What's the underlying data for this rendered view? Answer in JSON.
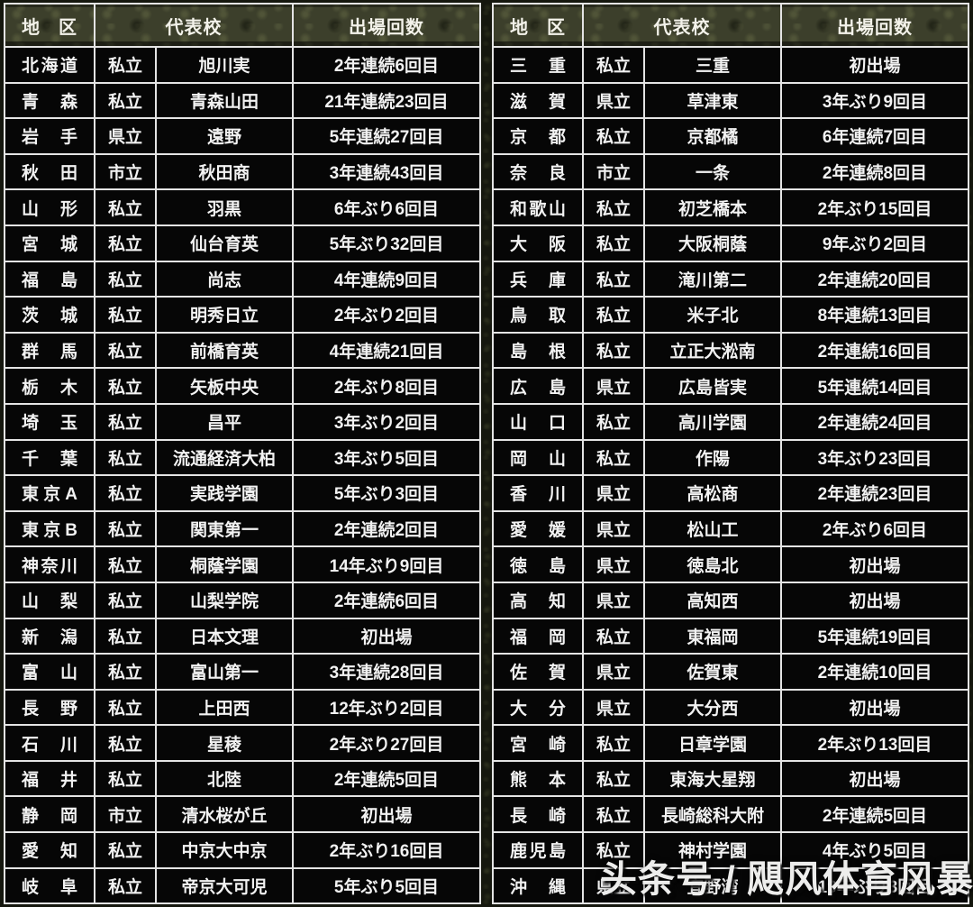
{
  "watermark": "头条号 / 飓风体育风暴",
  "colors": {
    "page_background": "#15170e",
    "header_background": "#3c3f2b",
    "cell_background": "#060606",
    "border": "#e4e4e4",
    "text": "#f2f2f2"
  },
  "chart_data": {
    "type": "table",
    "columns": [
      "地区",
      "代表校",
      "出場回数"
    ],
    "tables": [
      {
        "side": "left",
        "rows": [
          {
            "region": "北海道",
            "type": "私立",
            "school": "旭川実",
            "appearances": "2年連続6回目"
          },
          {
            "region": "青森",
            "type": "私立",
            "school": "青森山田",
            "appearances": "21年連続23回目"
          },
          {
            "region": "岩手",
            "type": "県立",
            "school": "遠野",
            "appearances": "5年連続27回目"
          },
          {
            "region": "秋田",
            "type": "市立",
            "school": "秋田商",
            "appearances": "3年連続43回目"
          },
          {
            "region": "山形",
            "type": "私立",
            "school": "羽黒",
            "appearances": "6年ぶり6回目"
          },
          {
            "region": "宮城",
            "type": "私立",
            "school": "仙台育英",
            "appearances": "5年ぶり32回目"
          },
          {
            "region": "福島",
            "type": "私立",
            "school": "尚志",
            "appearances": "4年連続9回目"
          },
          {
            "region": "茨城",
            "type": "私立",
            "school": "明秀日立",
            "appearances": "2年ぶり2回目"
          },
          {
            "region": "群馬",
            "type": "私立",
            "school": "前橋育英",
            "appearances": "4年連続21回目"
          },
          {
            "region": "栃木",
            "type": "私立",
            "school": "矢板中央",
            "appearances": "2年ぶり8回目"
          },
          {
            "region": "埼玉",
            "type": "私立",
            "school": "昌平",
            "appearances": "3年ぶり2回目"
          },
          {
            "region": "千葉",
            "type": "私立",
            "school": "流通経済大柏",
            "appearances": "3年ぶり5回目"
          },
          {
            "region": "東京A",
            "type": "私立",
            "school": "実践学園",
            "appearances": "5年ぶり3回目"
          },
          {
            "region": "東京B",
            "type": "私立",
            "school": "関東第一",
            "appearances": "2年連続2回目"
          },
          {
            "region": "神奈川",
            "type": "私立",
            "school": "桐蔭学園",
            "appearances": "14年ぶり9回目"
          },
          {
            "region": "山梨",
            "type": "私立",
            "school": "山梨学院",
            "appearances": "2年連続6回目"
          },
          {
            "region": "新潟",
            "type": "私立",
            "school": "日本文理",
            "appearances": "初出場"
          },
          {
            "region": "富山",
            "type": "私立",
            "school": "富山第一",
            "appearances": "3年連続28回目"
          },
          {
            "region": "長野",
            "type": "私立",
            "school": "上田西",
            "appearances": "12年ぶり2回目"
          },
          {
            "region": "石川",
            "type": "私立",
            "school": "星稜",
            "appearances": "2年ぶり27回目"
          },
          {
            "region": "福井",
            "type": "私立",
            "school": "北陸",
            "appearances": "2年連続5回目"
          },
          {
            "region": "静岡",
            "type": "市立",
            "school": "清水桜が丘",
            "appearances": "初出場"
          },
          {
            "region": "愛知",
            "type": "私立",
            "school": "中京大中京",
            "appearances": "2年ぶり16回目"
          },
          {
            "region": "岐阜",
            "type": "私立",
            "school": "帝京大可児",
            "appearances": "5年ぶり5回目"
          }
        ]
      },
      {
        "side": "right",
        "rows": [
          {
            "region": "三重",
            "type": "私立",
            "school": "三重",
            "appearances": "初出場"
          },
          {
            "region": "滋賀",
            "type": "県立",
            "school": "草津東",
            "appearances": "3年ぶり9回目"
          },
          {
            "region": "京都",
            "type": "私立",
            "school": "京都橘",
            "appearances": "6年連続7回目"
          },
          {
            "region": "奈良",
            "type": "市立",
            "school": "一条",
            "appearances": "2年連続8回目"
          },
          {
            "region": "和歌山",
            "type": "私立",
            "school": "初芝橋本",
            "appearances": "2年ぶり15回目"
          },
          {
            "region": "大阪",
            "type": "私立",
            "school": "大阪桐蔭",
            "appearances": "9年ぶり2回目"
          },
          {
            "region": "兵庫",
            "type": "私立",
            "school": "滝川第二",
            "appearances": "2年連続20回目"
          },
          {
            "region": "鳥取",
            "type": "私立",
            "school": "米子北",
            "appearances": "8年連続13回目"
          },
          {
            "region": "島根",
            "type": "私立",
            "school": "立正大淞南",
            "appearances": "2年連続16回目"
          },
          {
            "region": "広島",
            "type": "県立",
            "school": "広島皆実",
            "appearances": "5年連続14回目"
          },
          {
            "region": "山口",
            "type": "私立",
            "school": "高川学園",
            "appearances": "2年連続24回目"
          },
          {
            "region": "岡山",
            "type": "私立",
            "school": "作陽",
            "appearances": "3年ぶり23回目"
          },
          {
            "region": "香川",
            "type": "県立",
            "school": "高松商",
            "appearances": "2年連続23回目"
          },
          {
            "region": "愛媛",
            "type": "県立",
            "school": "松山工",
            "appearances": "2年ぶり6回目"
          },
          {
            "region": "徳島",
            "type": "県立",
            "school": "徳島北",
            "appearances": "初出場"
          },
          {
            "region": "高知",
            "type": "県立",
            "school": "高知西",
            "appearances": "初出場"
          },
          {
            "region": "福岡",
            "type": "私立",
            "school": "東福岡",
            "appearances": "5年連続19回目"
          },
          {
            "region": "佐賀",
            "type": "県立",
            "school": "佐賀東",
            "appearances": "2年連続10回目"
          },
          {
            "region": "大分",
            "type": "県立",
            "school": "大分西",
            "appearances": "初出場"
          },
          {
            "region": "宮崎",
            "type": "私立",
            "school": "日章学園",
            "appearances": "2年ぶり13回目"
          },
          {
            "region": "熊本",
            "type": "私立",
            "school": "東海大星翔",
            "appearances": "初出場"
          },
          {
            "region": "長崎",
            "type": "私立",
            "school": "長崎総科大附",
            "appearances": "2年連続5回目"
          },
          {
            "region": "鹿児島",
            "type": "私立",
            "school": "神村学園",
            "appearances": "4年ぶり5回目"
          },
          {
            "region": "沖縄",
            "type": "県立",
            "school": "宜野湾",
            "appearances": "19年ぶり3回目"
          }
        ]
      }
    ]
  }
}
